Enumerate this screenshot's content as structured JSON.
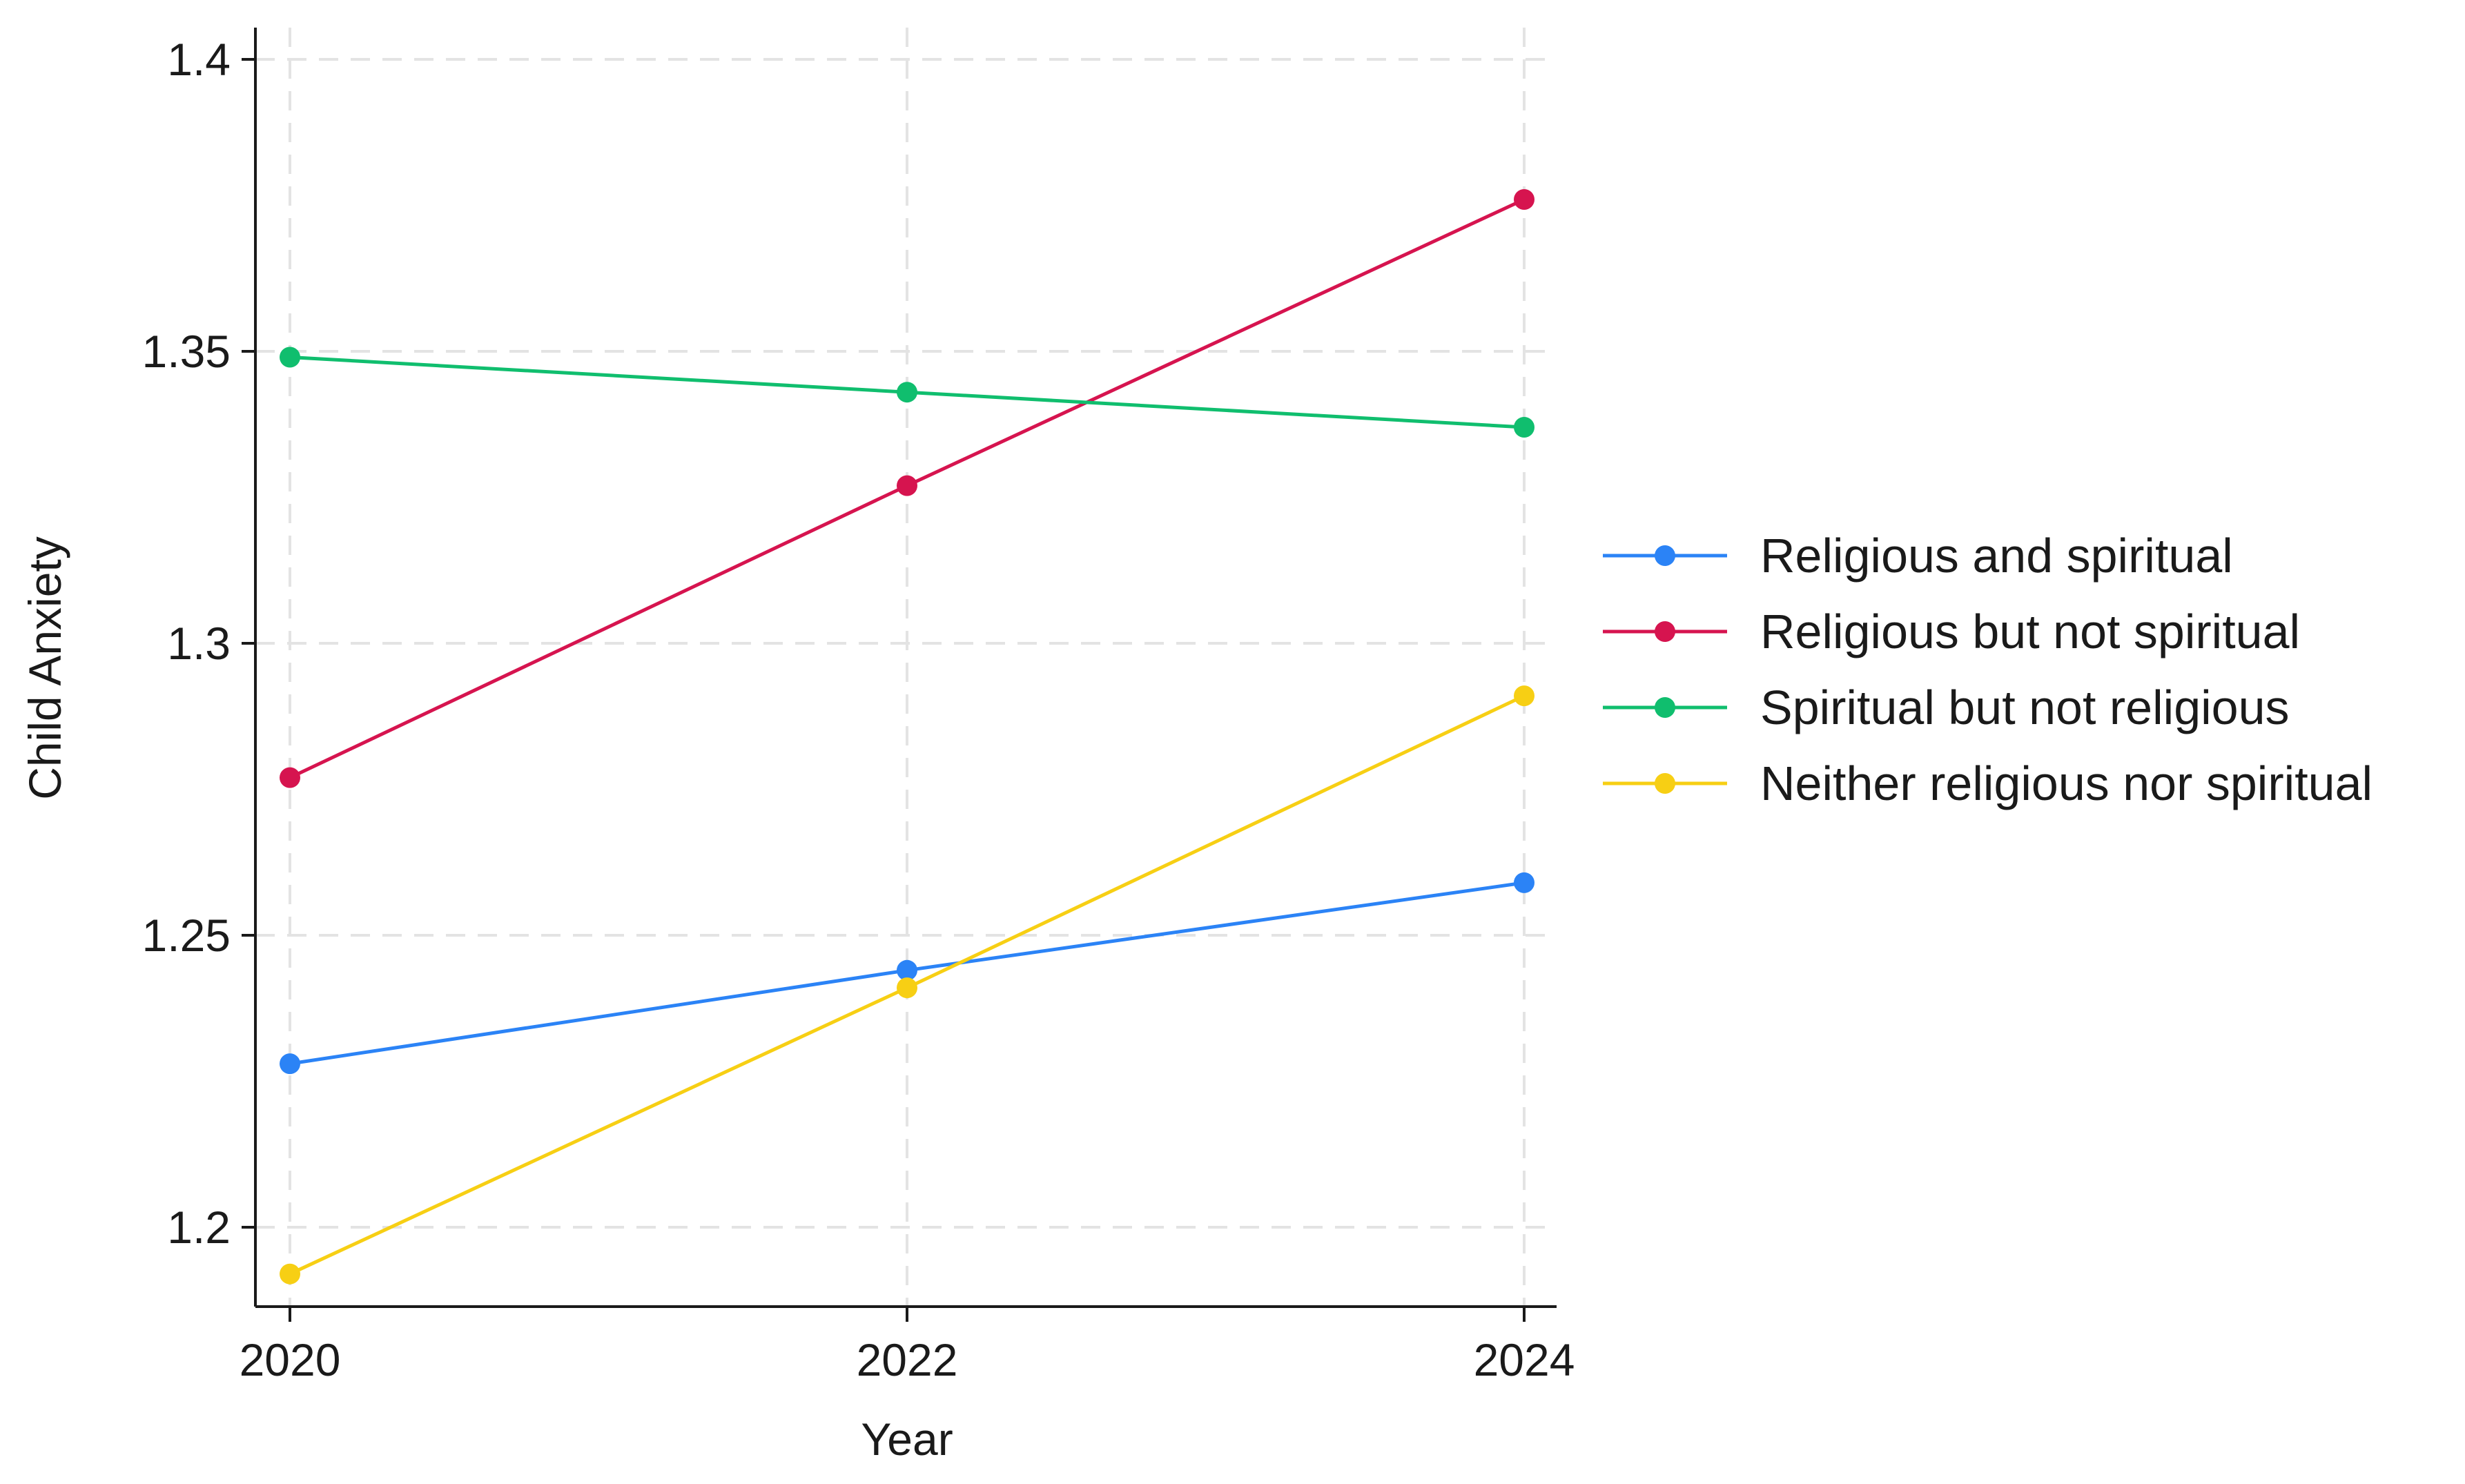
{
  "chart_data": {
    "type": "line",
    "title": "",
    "xlabel": "Year",
    "ylabel": "Child Anxiety",
    "x": [
      2020,
      2022,
      2024
    ],
    "x_tick_labels": [
      "2020",
      "2022",
      "2024"
    ],
    "y_ticks": [
      1.2,
      1.25,
      1.3,
      1.35,
      1.4
    ],
    "y_tick_labels": [
      "1.2",
      "1.25",
      "1.3",
      "1.35",
      "1.4"
    ],
    "ylim": [
      1.186,
      1.406
    ],
    "grid": true,
    "legend_position": "right",
    "series": [
      {
        "name": "Religious and spiritual",
        "color": "#2b83f6",
        "values": [
          1.228,
          1.244,
          1.259
        ]
      },
      {
        "name": "Religious but not spiritual",
        "color": "#d6144f",
        "values": [
          1.277,
          1.327,
          1.376
        ]
      },
      {
        "name": "Spiritual but not religious",
        "color": "#10be6e",
        "values": [
          1.349,
          1.343,
          1.337
        ]
      },
      {
        "name": "Neither religious nor spiritual",
        "color": "#f7cf14",
        "values": [
          1.192,
          1.241,
          1.291
        ]
      }
    ]
  }
}
